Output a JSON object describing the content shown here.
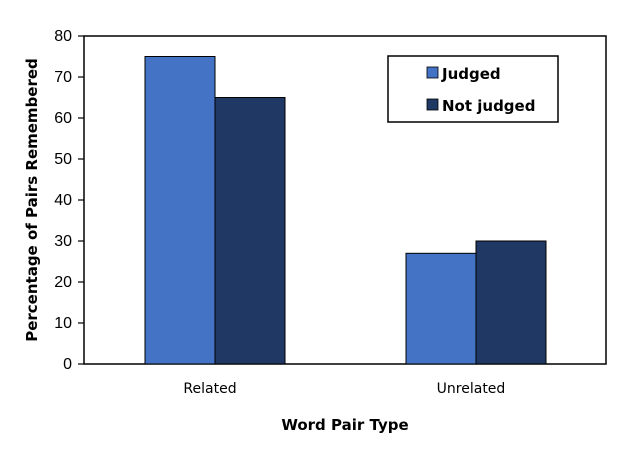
{
  "chart_data": {
    "type": "bar",
    "title": "",
    "xlabel": "Word Pair Type",
    "ylabel": "Percentage of Pairs Remembered",
    "categories": [
      "Related",
      "Unrelated"
    ],
    "series": [
      {
        "name": "Judged",
        "values": [
          75,
          27
        ],
        "color": "#4472c4"
      },
      {
        "name": "Not judged",
        "values": [
          65,
          30
        ],
        "color": "#203864"
      }
    ],
    "ylim": [
      0,
      80
    ],
    "yticks": [
      "0",
      "10",
      "20",
      "30",
      "40",
      "50",
      "60",
      "70",
      "80"
    ],
    "grid": false,
    "legend_position": "top-right"
  }
}
